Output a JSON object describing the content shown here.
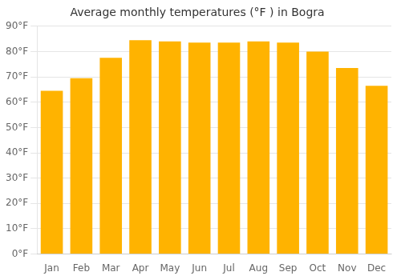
{
  "chart_data": {
    "type": "bar",
    "title": "Average monthly temperatures (°F ) in Bogra",
    "categories": [
      "Jan",
      "Feb",
      "Mar",
      "Apr",
      "May",
      "Jun",
      "Jul",
      "Aug",
      "Sep",
      "Oct",
      "Nov",
      "Dec"
    ],
    "values": [
      64.5,
      69.5,
      77.5,
      84.5,
      84.0,
      83.5,
      83.5,
      84.0,
      83.5,
      80.0,
      73.5,
      66.5
    ],
    "color": "#FFB300",
    "ylim": [
      0,
      90
    ],
    "yticks": [
      {
        "value": 0,
        "label": "0°F"
      },
      {
        "value": 10,
        "label": "10°F"
      },
      {
        "value": 20,
        "label": "20°F"
      },
      {
        "value": 30,
        "label": "30°F"
      },
      {
        "value": 40,
        "label": "40°F"
      },
      {
        "value": 50,
        "label": "50°F"
      },
      {
        "value": 60,
        "label": "60°F"
      },
      {
        "value": 70,
        "label": "70°F"
      },
      {
        "value": 80,
        "label": "80°F"
      },
      {
        "value": 90,
        "label": "90°F"
      }
    ],
    "grid": true
  }
}
